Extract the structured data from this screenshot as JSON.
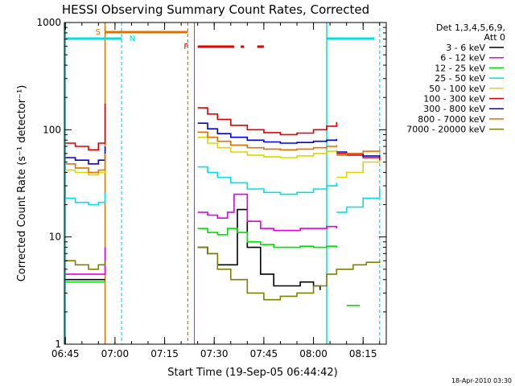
{
  "chart_data": {
    "type": "line",
    "title": "HESSI Observing Summary Count Rates, Corrected",
    "xlabel": "Start Time (19-Sep-05 06:44:42)",
    "ylabel": "Corrected Count Rate (s⁻¹ detector⁻¹)",
    "ylim": [
      1,
      1000
    ],
    "yscale": "log",
    "xlim": [
      "06:44:42",
      "08:22:00"
    ],
    "x_ticks": [
      "06:45",
      "07:00",
      "07:15",
      "07:30",
      "07:45",
      "08:00",
      "08:15"
    ],
    "y_ticks": [
      "1",
      "10",
      "100",
      "1000"
    ],
    "footer": "18-Apr-2010 03:30",
    "legend": {
      "placement": "right",
      "header1": "Det 1,3,4,5,6,9,",
      "header2": "Att 0"
    },
    "flags": [
      {
        "label": "S",
        "color": "#e07000"
      },
      {
        "label": "N",
        "color": "#00e0e0"
      },
      {
        "label": "F",
        "color": "#e00000"
      }
    ],
    "series": [
      {
        "name": "3 - 6 keV",
        "color": "#000000",
        "segments": [
          {
            "x": [
              "06:45",
              "06:50",
              "06:55",
              "06:57"
            ],
            "y": [
              4.0,
              4.0,
              4.0,
              4.0
            ]
          },
          {
            "x": [
              "07:25",
              "07:28",
              "07:31",
              "07:34",
              "07:37",
              "07:40",
              "07:44",
              "07:48",
              "07:52",
              "07:56",
              "08:00",
              "08:02"
            ],
            "y": [
              8.0,
              7.0,
              5.5,
              5.5,
              18.0,
              8.0,
              4.5,
              3.5,
              3.5,
              3.8,
              3.5,
              3.2
            ]
          }
        ]
      },
      {
        "name": "6 - 12 keV",
        "color": "#e000e0",
        "segments": [
          {
            "x": [
              "06:45",
              "06:50",
              "06:55",
              "06:57"
            ],
            "y": [
              4.5,
              4.5,
              4.5,
              8.0
            ]
          },
          {
            "x": [
              "07:25",
              "07:28",
              "07:31",
              "07:34",
              "07:36",
              "07:40",
              "07:44",
              "07:48",
              "07:52",
              "07:56",
              "08:00",
              "08:04",
              "08:07"
            ],
            "y": [
              17.0,
              16.0,
              15.0,
              17.0,
              25.0,
              14.0,
              12.0,
              11.5,
              11.5,
              12.0,
              12.0,
              12.5,
              12.0
            ]
          }
        ]
      },
      {
        "name": "12 - 25 keV",
        "color": "#00e000",
        "segments": [
          {
            "x": [
              "06:45",
              "06:50",
              "06:55",
              "06:57"
            ],
            "y": [
              3.8,
              3.8,
              3.8,
              3.8
            ]
          },
          {
            "x": [
              "07:25",
              "07:28",
              "07:31",
              "07:34",
              "07:37",
              "07:40",
              "07:44",
              "07:48",
              "07:52",
              "07:56",
              "08:00",
              "08:04",
              "08:07"
            ],
            "y": [
              12.0,
              11.0,
              10.5,
              12.0,
              11.0,
              9.0,
              8.5,
              8.0,
              8.0,
              8.2,
              8.0,
              8.2,
              8.0
            ]
          },
          {
            "x": [
              "08:10",
              "08:14"
            ],
            "y": [
              2.3,
              2.3
            ]
          }
        ]
      },
      {
        "name": "25 - 50 keV",
        "color": "#00e0e0",
        "segments": [
          {
            "x": [
              "06:45",
              "06:48",
              "06:52",
              "06:55",
              "06:57"
            ],
            "y": [
              23.0,
              21.0,
              20.0,
              21.0,
              26.0
            ]
          },
          {
            "x": [
              "07:25",
              "07:28",
              "07:31",
              "07:35",
              "07:40",
              "07:45",
              "07:50",
              "07:55",
              "08:00",
              "08:04",
              "08:07"
            ],
            "y": [
              45.0,
              40.0,
              36.0,
              32.0,
              28.0,
              26.0,
              25.0,
              26.0,
              28.0,
              30.0,
              32.0
            ]
          },
          {
            "x": [
              "08:07",
              "08:10",
              "08:15",
              "08:20"
            ],
            "y": [
              17.0,
              19.0,
              23.0,
              28.0
            ]
          }
        ]
      },
      {
        "name": "50 - 100 keV",
        "color": "#d8d800",
        "segments": [
          {
            "x": [
              "06:45",
              "06:48",
              "06:52",
              "06:55",
              "06:57"
            ],
            "y": [
              42.0,
              40.0,
              38.0,
              40.0,
              50.0
            ]
          },
          {
            "x": [
              "07:25",
              "07:28",
              "07:31",
              "07:35",
              "07:40",
              "07:45",
              "07:50",
              "07:55",
              "08:00",
              "08:04",
              "08:07"
            ],
            "y": [
              85.0,
              75.0,
              68.0,
              62.0,
              58.0,
              56.0,
              55.0,
              57.0,
              60.0,
              63.0,
              65.0
            ]
          },
          {
            "x": [
              "08:07",
              "08:10",
              "08:15",
              "08:20"
            ],
            "y": [
              36.0,
              40.0,
              50.0,
              58.0
            ]
          }
        ]
      },
      {
        "name": "100 - 300 keV",
        "color": "#e00000",
        "segments": [
          {
            "x": [
              "06:45",
              "06:48",
              "06:52",
              "06:55",
              "06:57"
            ],
            "y": [
              75.0,
              70.0,
              65.0,
              75.0,
              175.0
            ]
          },
          {
            "x": [
              "07:25",
              "07:28",
              "07:31",
              "07:35",
              "07:40",
              "07:45",
              "07:50",
              "07:55",
              "08:00",
              "08:04",
              "08:07"
            ],
            "y": [
              160.0,
              140.0,
              125.0,
              110.0,
              100.0,
              94.0,
              90.0,
              93.0,
              100.0,
              108.0,
              118.0
            ]
          },
          {
            "x": [
              "08:07",
              "08:10",
              "08:15",
              "08:20"
            ],
            "y": [
              60.0,
              58.0,
              55.0,
              52.0
            ]
          }
        ]
      },
      {
        "name": "300 - 800 keV",
        "color": "#0000e0",
        "segments": [
          {
            "x": [
              "06:45",
              "06:48",
              "06:52",
              "06:55",
              "06:57"
            ],
            "y": [
              55.0,
              52.0,
              48.0,
              52.0,
              70.0
            ]
          },
          {
            "x": [
              "07:25",
              "07:28",
              "07:31",
              "07:35",
              "07:40",
              "07:45",
              "07:50",
              "07:55",
              "08:00",
              "08:04",
              "08:07"
            ],
            "y": [
              115.0,
              102.0,
              92.0,
              85.0,
              80.0,
              77.0,
              75.0,
              76.0,
              78.0,
              80.0,
              82.0
            ]
          },
          {
            "x": [
              "08:07",
              "08:10",
              "08:15",
              "08:20"
            ],
            "y": [
              62.0,
              60.0,
              57.0,
              55.0
            ]
          }
        ]
      },
      {
        "name": "800 - 7000 keV",
        "color": "#e07000",
        "segments": [
          {
            "x": [
              "06:45",
              "06:48",
              "06:52",
              "06:55",
              "06:57"
            ],
            "y": [
              48.0,
              44.0,
              40.0,
              42.0,
              60.0
            ]
          },
          {
            "x": [
              "07:25",
              "07:28",
              "07:31",
              "07:35",
              "07:40",
              "07:45",
              "07:50",
              "07:55",
              "08:00",
              "08:04",
              "08:07"
            ],
            "y": [
              95.0,
              85.0,
              78.0,
              72.0,
              68.0,
              66.0,
              65.0,
              66.0,
              68.0,
              70.0,
              72.0
            ]
          },
          {
            "x": [
              "08:07",
              "08:10",
              "08:15",
              "08:20"
            ],
            "y": [
              58.0,
              60.0,
              63.0,
              65.0
            ]
          }
        ]
      },
      {
        "name": "7000 - 20000 keV",
        "color": "#808000",
        "segments": [
          {
            "x": [
              "06:45",
              "06:48",
              "06:52",
              "06:55",
              "06:57"
            ],
            "y": [
              6.0,
              5.5,
              5.0,
              5.5,
              6.0
            ]
          },
          {
            "x": [
              "07:25",
              "07:28",
              "07:31",
              "07:35",
              "07:40",
              "07:45",
              "07:50",
              "07:55",
              "08:00",
              "08:04",
              "08:07",
              "08:12",
              "08:16",
              "08:20"
            ],
            "y": [
              8.0,
              7.0,
              5.0,
              4.0,
              3.0,
              2.6,
              2.8,
              3.0,
              3.5,
              4.5,
              5.0,
              5.5,
              5.8,
              6.0
            ]
          }
        ]
      }
    ]
  }
}
